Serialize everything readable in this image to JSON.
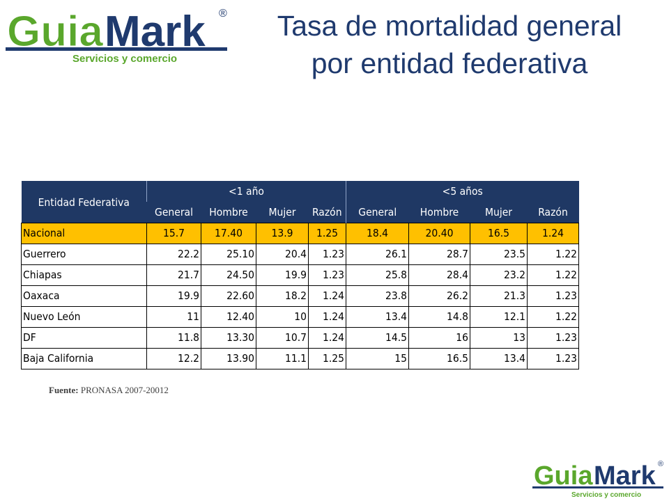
{
  "logo": {
    "brand_part1": "Guia",
    "brand_part2": "Mark",
    "registered": "®",
    "tagline": "Servicios y comercio",
    "colors": {
      "green": "#5aa72c",
      "navy": "#1f3a6e",
      "light_green": "#8cc63f"
    }
  },
  "title": {
    "line1": "Tasa de mortalidad general",
    "line2": "por entidad federativa",
    "color": "#1f3a6e"
  },
  "table": {
    "entity_header": "Entidad Federativa",
    "groups": [
      "<1 año",
      "<5 años"
    ],
    "subheaders": [
      "General",
      "Hombre",
      "Mujer",
      "Razón",
      "General",
      "Hombre",
      "Mujer",
      "Razón"
    ],
    "header_bg": "#1f3864",
    "highlight_bg": "#ffc000",
    "rows": [
      {
        "entity": "Nacional",
        "values": [
          "15.7",
          "17.40",
          "13.9",
          "1.25",
          "18.4",
          "20.40",
          "16.5",
          "1.24"
        ]
      },
      {
        "entity": "Guerrero",
        "values": [
          "22.2",
          "25.10",
          "20.4",
          "1.23",
          "26.1",
          "28.7",
          "23.5",
          "1.22"
        ]
      },
      {
        "entity": "Chiapas",
        "values": [
          "21.7",
          "24.50",
          "19.9",
          "1.23",
          "25.8",
          "28.4",
          "23.2",
          "1.22"
        ]
      },
      {
        "entity": "Oaxaca",
        "values": [
          "19.9",
          "22.60",
          "18.2",
          "1.24",
          "23.8",
          "26.2",
          "21.3",
          "1.23"
        ]
      },
      {
        "entity": "Nuevo León",
        "values": [
          "11",
          "12.40",
          "10",
          "1.24",
          "13.4",
          "14.8",
          "12.1",
          "1.22"
        ]
      },
      {
        "entity": "DF",
        "values": [
          "11.8",
          "13.30",
          "10.7",
          "1.24",
          "14.5",
          "16",
          "13",
          "1.23"
        ]
      },
      {
        "entity": "Baja California",
        "values": [
          "12.2",
          "13.90",
          "11.1",
          "1.25",
          "15",
          "16.5",
          "13.4",
          "1.23"
        ]
      }
    ]
  },
  "source": {
    "label": "Fuente:",
    "text": "PRONASA 2007-20012"
  }
}
